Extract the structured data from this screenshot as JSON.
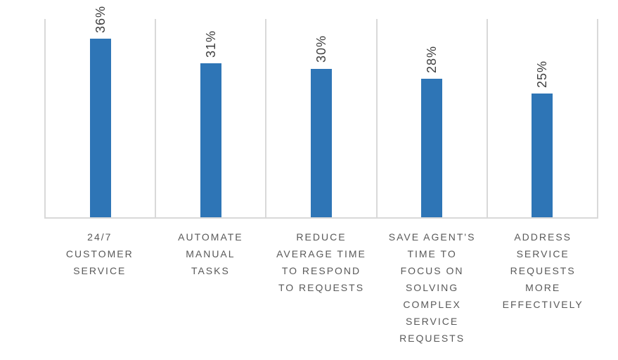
{
  "chart_data": {
    "type": "bar",
    "title": "",
    "xlabel": "",
    "ylabel": "",
    "categories": [
      "24/7 CUSTOMER SERVICE",
      "AUTOMATE MANUAL TASKS",
      "REDUCE AVERAGE TIME TO RESPOND TO REQUESTS",
      "SAVE AGENT'S TIME TO FOCUS ON SOLVING COMPLEX SERVICE REQUESTS",
      "ADDRESS SERVICE REQUESTS MORE EFFECTIVELY"
    ],
    "category_lines": [
      [
        "24/7",
        "CUSTOMER",
        "SERVICE"
      ],
      [
        "AUTOMATE",
        "MANUAL",
        "TASKS"
      ],
      [
        "REDUCE",
        "AVERAGE TIME",
        "TO RESPOND",
        "TO REQUESTS"
      ],
      [
        "SAVE AGENT'S",
        "TIME TO",
        "FOCUS ON",
        "SOLVING",
        "COMPLEX",
        "SERVICE",
        "REQUESTS"
      ],
      [
        "ADDRESS",
        "SERVICE",
        "REQUESTS",
        "MORE",
        "EFFECTIVELY"
      ]
    ],
    "values": [
      36,
      31,
      30,
      28,
      25
    ],
    "value_labels": [
      "36%",
      "31%",
      "30%",
      "28%",
      "25%"
    ],
    "ylim": [
      0,
      40
    ],
    "legend": "none",
    "grid": "vertical category separators and left/right/bottom plot border only; no y-axis tick labels",
    "value_label_rotation_deg": -90,
    "colors": {
      "bar": "#2E75B6",
      "gridline": "#D9D9D9",
      "value_label": "#404040",
      "category_label": "#595959"
    }
  }
}
